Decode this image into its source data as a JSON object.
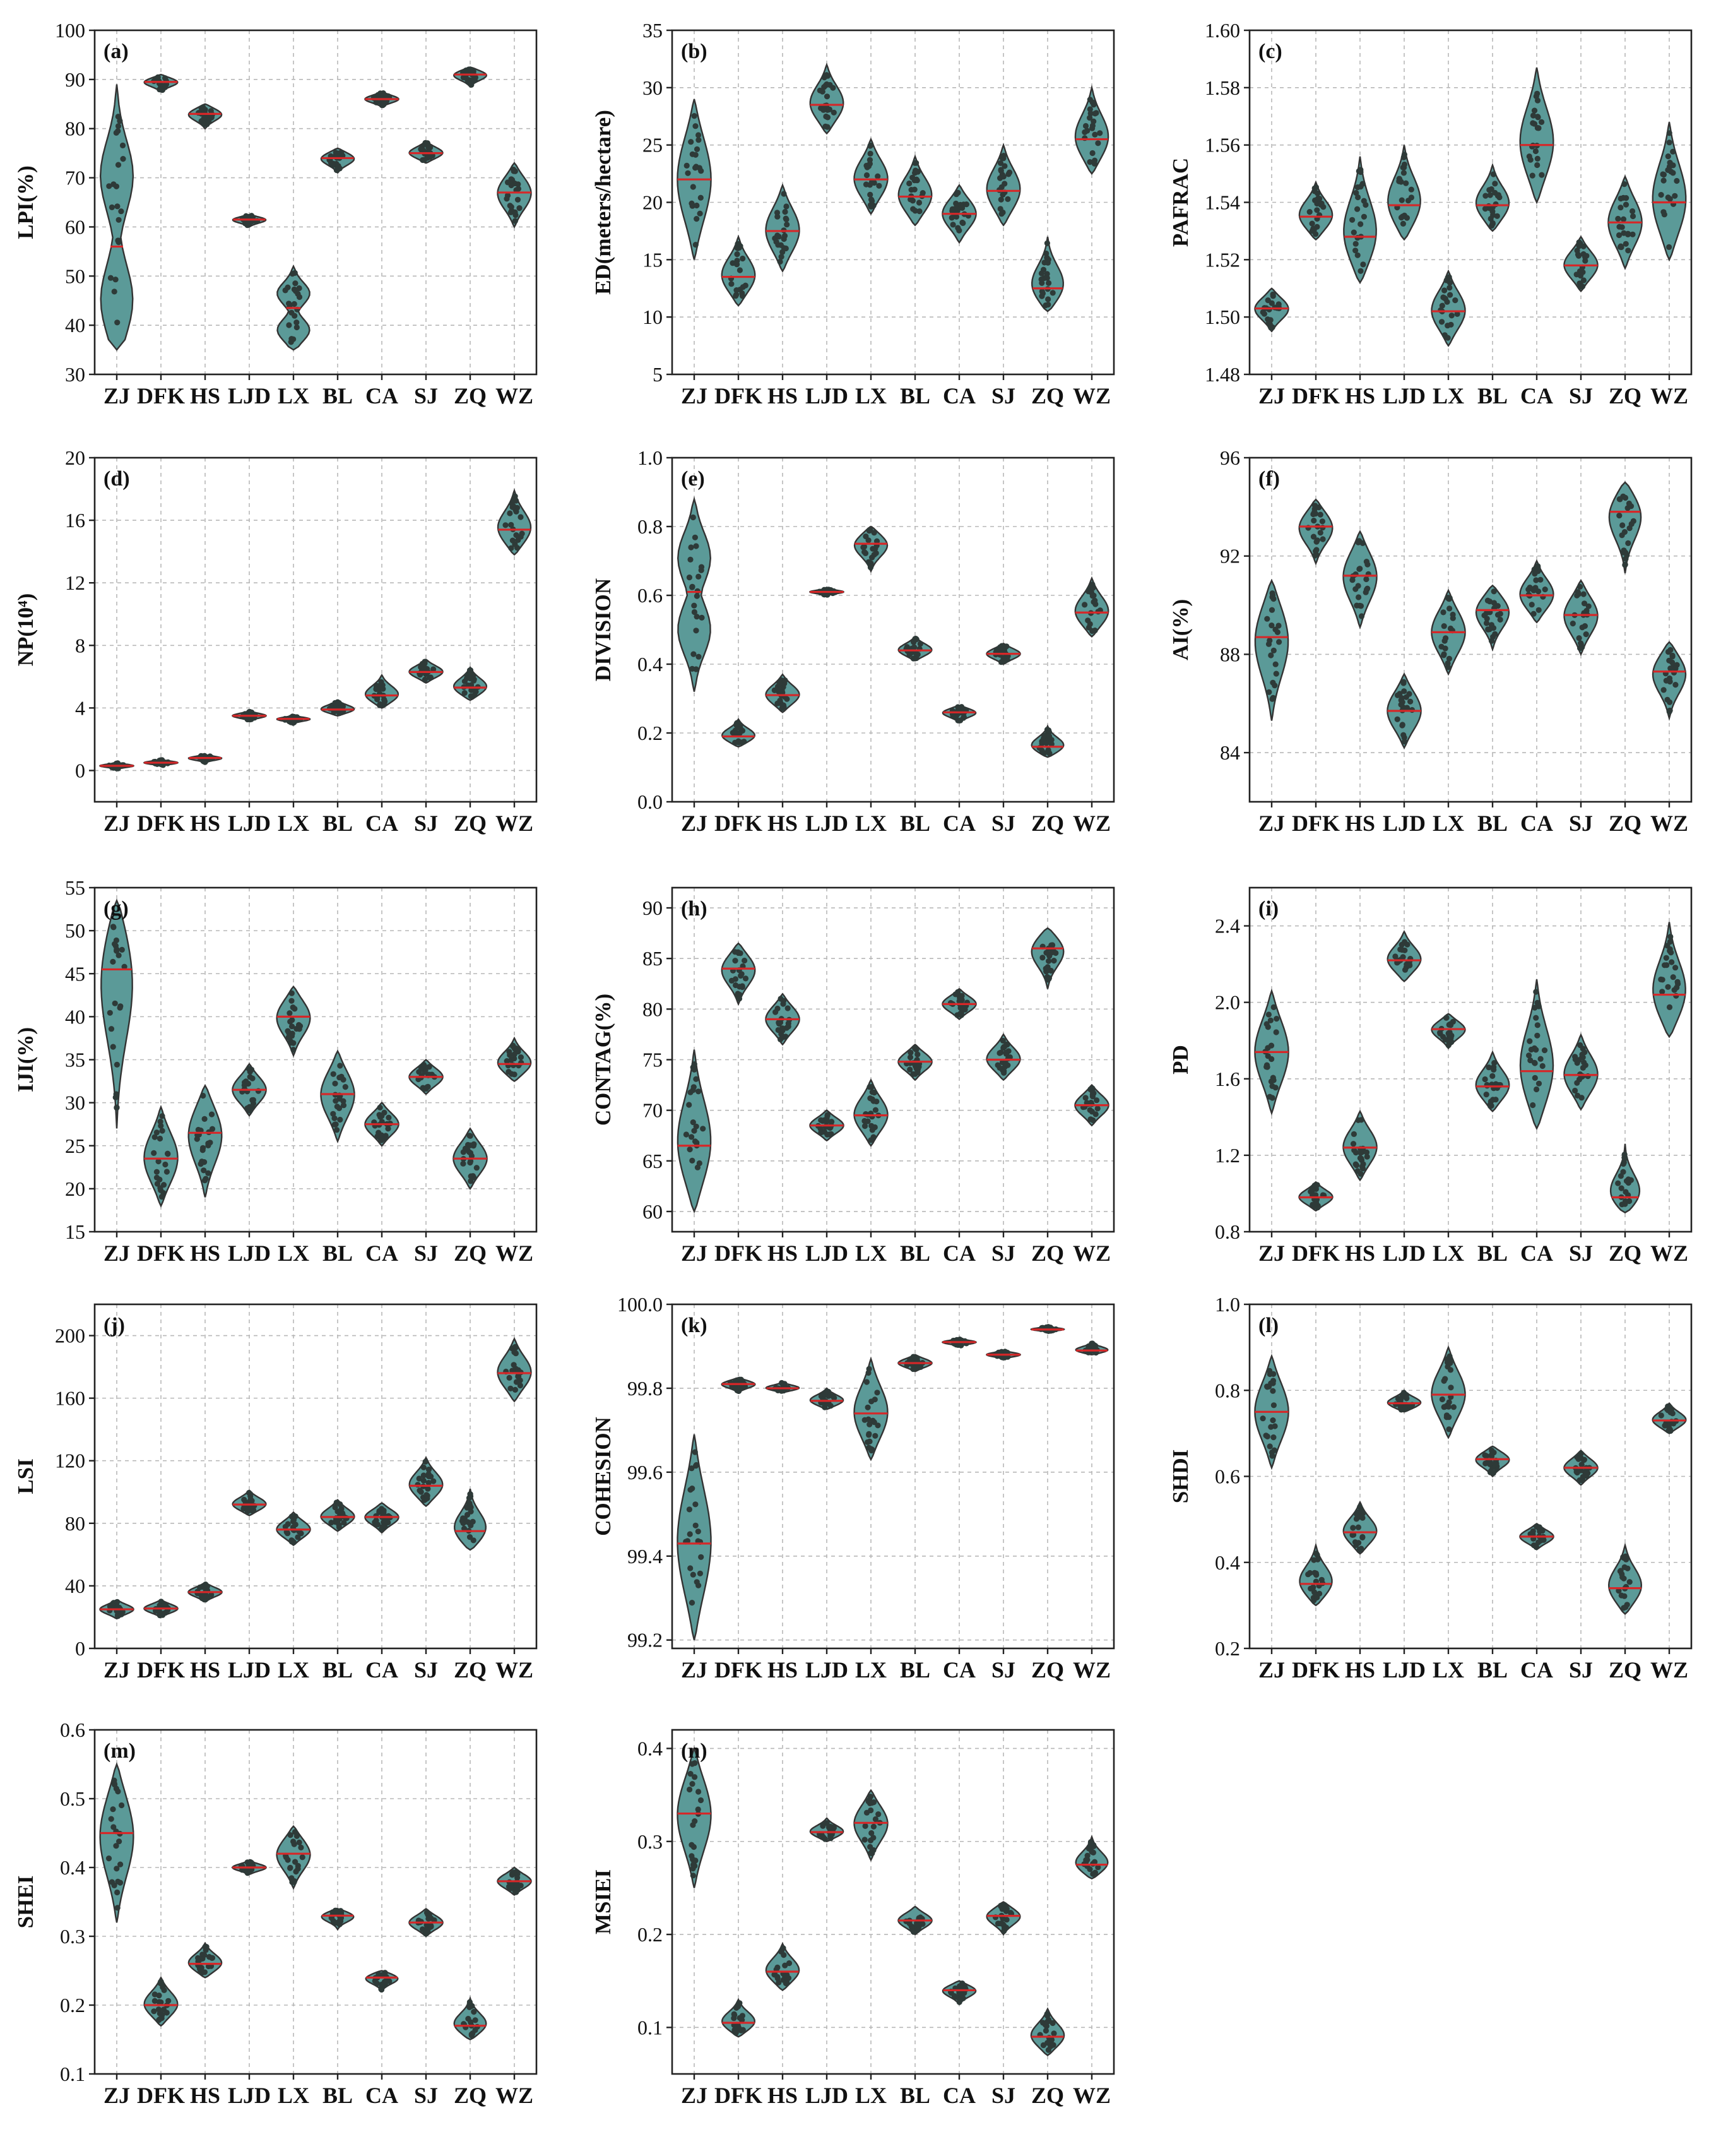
{
  "colors": {
    "violin": "#5b9a98",
    "dot": "#2e3a38",
    "median": "#d62728",
    "frame": "#222222",
    "grid": "#b8b8b8"
  },
  "chart_data": [
    {
      "id": "a",
      "label": "(a)",
      "type": "violin",
      "ylabel": "LPI(%)",
      "categories": [
        "ZJ",
        "DFK",
        "HS",
        "LJD",
        "LX",
        "BL",
        "CA",
        "SJ",
        "ZQ",
        "WZ"
      ],
      "ylim": [
        30,
        100
      ],
      "yticks": [
        30,
        40,
        50,
        60,
        70,
        80,
        90,
        100
      ],
      "yticklabels": [
        "30",
        "40",
        "50",
        "60",
        "70",
        "80",
        "90",
        "100"
      ],
      "medians": [
        56,
        89.5,
        83,
        61.5,
        43.5,
        74,
        86,
        75,
        91,
        67
      ],
      "ranges": [
        [
          35,
          89
        ],
        [
          87.5,
          91
        ],
        [
          80,
          85
        ],
        [
          60,
          62.5
        ],
        [
          35,
          52
        ],
        [
          71,
          76
        ],
        [
          84.5,
          87.5
        ],
        [
          73,
          77.5
        ],
        [
          88.5,
          92.5
        ],
        [
          60,
          73
        ]
      ],
      "bimodal": [
        [
          45,
          70.5
        ],
        null,
        null,
        null,
        [
          39,
          46.5
        ],
        null,
        null,
        null,
        null,
        null
      ]
    },
    {
      "id": "b",
      "label": "(b)",
      "type": "violin",
      "ylabel": "ED(meters/hectare)",
      "categories": [
        "ZJ",
        "DFK",
        "HS",
        "LJD",
        "LX",
        "BL",
        "CA",
        "SJ",
        "ZQ",
        "WZ"
      ],
      "ylim": [
        5,
        35
      ],
      "yticks": [
        5,
        10,
        15,
        20,
        25,
        30,
        35
      ],
      "yticklabels": [
        "5",
        "10",
        "15",
        "20",
        "25",
        "30",
        "35"
      ],
      "medians": [
        22,
        13.5,
        17.5,
        28.5,
        22,
        20.5,
        19,
        21,
        12.5,
        25.5
      ],
      "ranges": [
        [
          15,
          29
        ],
        [
          11,
          17
        ],
        [
          14,
          21.5
        ],
        [
          26,
          32
        ],
        [
          19,
          25.5
        ],
        [
          18,
          24
        ],
        [
          16.5,
          21.5
        ],
        [
          18,
          25
        ],
        [
          10.5,
          17
        ],
        [
          22.5,
          30
        ]
      ],
      "bimodal": null
    },
    {
      "id": "c",
      "label": "(c)",
      "type": "violin",
      "ylabel": "PAFRAC",
      "categories": [
        "ZJ",
        "DFK",
        "HS",
        "LJD",
        "LX",
        "BL",
        "CA",
        "SJ",
        "ZQ",
        "WZ"
      ],
      "ylim": [
        1.48,
        1.6
      ],
      "yticks": [
        1.48,
        1.5,
        1.52,
        1.54,
        1.56,
        1.58,
        1.6
      ],
      "yticklabels": [
        "1.48",
        "1.50",
        "1.52",
        "1.54",
        "1.56",
        "1.58",
        "1.60"
      ],
      "medians": [
        1.503,
        1.535,
        1.528,
        1.539,
        1.502,
        1.539,
        1.56,
        1.518,
        1.533,
        1.54
      ],
      "ranges": [
        [
          1.495,
          1.51
        ],
        [
          1.527,
          1.547
        ],
        [
          1.512,
          1.556
        ],
        [
          1.527,
          1.56
        ],
        [
          1.49,
          1.516
        ],
        [
          1.53,
          1.553
        ],
        [
          1.54,
          1.587
        ],
        [
          1.509,
          1.528
        ],
        [
          1.517,
          1.549
        ],
        [
          1.52,
          1.568
        ]
      ],
      "bimodal": null
    },
    {
      "id": "d",
      "label": "(d)",
      "type": "violin",
      "ylabel": "NP(10⁴)",
      "categories": [
        "ZJ",
        "DFK",
        "HS",
        "LJD",
        "LX",
        "BL",
        "CA",
        "SJ",
        "ZQ",
        "WZ"
      ],
      "ylim": [
        -2,
        20
      ],
      "yticks": [
        0,
        4,
        8,
        12,
        16,
        20
      ],
      "yticklabels": [
        "0",
        "4",
        "8",
        "12",
        "16",
        "20"
      ],
      "medians": [
        0.3,
        0.5,
        0.8,
        3.5,
        3.3,
        3.9,
        4.8,
        6.3,
        5.3,
        15.4
      ],
      "ranges": [
        [
          0.1,
          0.5
        ],
        [
          0.3,
          0.7
        ],
        [
          0.5,
          1.0
        ],
        [
          3.2,
          3.8
        ],
        [
          3.0,
          3.5
        ],
        [
          3.5,
          4.5
        ],
        [
          4.0,
          6.1
        ],
        [
          5.6,
          7.1
        ],
        [
          4.5,
          6.6
        ],
        [
          13.8,
          17.9
        ]
      ],
      "bimodal": null
    },
    {
      "id": "e",
      "label": "(e)",
      "type": "violin",
      "ylabel": "DIVISION",
      "categories": [
        "ZJ",
        "DFK",
        "HS",
        "LJD",
        "LX",
        "BL",
        "CA",
        "SJ",
        "ZQ",
        "WZ"
      ],
      "ylim": [
        0,
        1.0
      ],
      "yticks": [
        0,
        0.2,
        0.4,
        0.6,
        0.8,
        1.0
      ],
      "yticklabels": [
        "0.0",
        "0.2",
        "0.4",
        "0.6",
        "0.8",
        "1.0"
      ],
      "medians": [
        0.61,
        0.19,
        0.31,
        0.61,
        0.75,
        0.44,
        0.26,
        0.43,
        0.16,
        0.55
      ],
      "ranges": [
        [
          0.32,
          0.88
        ],
        [
          0.16,
          0.24
        ],
        [
          0.26,
          0.37
        ],
        [
          0.6,
          0.62
        ],
        [
          0.67,
          0.8
        ],
        [
          0.41,
          0.48
        ],
        [
          0.23,
          0.28
        ],
        [
          0.4,
          0.46
        ],
        [
          0.13,
          0.22
        ],
        [
          0.48,
          0.65
        ]
      ],
      "bimodal": [
        [
          0.5,
          0.71
        ],
        null,
        null,
        null,
        null,
        null,
        null,
        null,
        null,
        null
      ]
    },
    {
      "id": "f",
      "label": "(f)",
      "type": "violin",
      "ylabel": "AI(%)",
      "categories": [
        "ZJ",
        "DFK",
        "HS",
        "LJD",
        "LX",
        "BL",
        "CA",
        "SJ",
        "ZQ",
        "WZ"
      ],
      "ylim": [
        82,
        96
      ],
      "yticks": [
        84,
        88,
        92,
        96
      ],
      "yticklabels": [
        "84",
        "88",
        "92",
        "96"
      ],
      "medians": [
        88.7,
        93.2,
        91.2,
        85.7,
        88.9,
        89.8,
        90.4,
        89.6,
        93.8,
        87.3
      ],
      "ranges": [
        [
          85.3,
          91.0
        ],
        [
          91.7,
          94.3
        ],
        [
          89.1,
          93.0
        ],
        [
          84.2,
          87.2
        ],
        [
          87.2,
          90.6
        ],
        [
          88.2,
          90.8
        ],
        [
          89.3,
          91.8
        ],
        [
          88.0,
          91.0
        ],
        [
          91.3,
          95.0
        ],
        [
          85.4,
          88.5
        ]
      ],
      "bimodal": null
    },
    {
      "id": "g",
      "label": "(g)",
      "type": "violin",
      "ylabel": "IJI(%)",
      "categories": [
        "ZJ",
        "DFK",
        "HS",
        "LJD",
        "LX",
        "BL",
        "CA",
        "SJ",
        "ZQ",
        "WZ"
      ],
      "ylim": [
        15,
        55
      ],
      "yticks": [
        15,
        20,
        25,
        30,
        35,
        40,
        45,
        50,
        55
      ],
      "yticklabels": [
        "15",
        "20",
        "25",
        "30",
        "35",
        "40",
        "45",
        "50",
        "55"
      ],
      "medians": [
        45.5,
        23.5,
        26.5,
        31.5,
        40,
        31,
        27.5,
        33,
        23.5,
        34.5
      ],
      "ranges": [
        [
          27,
          53.5
        ],
        [
          18,
          29.5
        ],
        [
          19,
          32
        ],
        [
          28.5,
          34.5
        ],
        [
          35.5,
          43.5
        ],
        [
          25.5,
          36
        ],
        [
          25,
          30
        ],
        [
          31,
          35
        ],
        [
          20,
          27
        ],
        [
          32.5,
          37.5
        ]
      ],
      "bimodal": null
    },
    {
      "id": "h",
      "label": "(h)",
      "type": "violin",
      "ylabel": "CONTAG(%)",
      "categories": [
        "ZJ",
        "DFK",
        "HS",
        "LJD",
        "LX",
        "BL",
        "CA",
        "SJ",
        "ZQ",
        "WZ"
      ],
      "ylim": [
        58,
        92
      ],
      "yticks": [
        60,
        65,
        70,
        75,
        80,
        85,
        90
      ],
      "yticklabels": [
        "60",
        "65",
        "70",
        "75",
        "80",
        "85",
        "90"
      ],
      "medians": [
        66.5,
        84,
        79,
        68.5,
        69.5,
        74.8,
        80.5,
        75,
        86,
        70.5
      ],
      "ranges": [
        [
          60,
          76
        ],
        [
          80.5,
          86.5
        ],
        [
          76.5,
          81.5
        ],
        [
          67,
          70
        ],
        [
          66.5,
          73
        ],
        [
          73,
          76.5
        ],
        [
          79,
          82
        ],
        [
          73,
          77.5
        ],
        [
          82,
          88
        ],
        [
          68.5,
          72.5
        ]
      ],
      "bimodal": null
    },
    {
      "id": "i",
      "label": "(i)",
      "type": "violin",
      "ylabel": "PD",
      "categories": [
        "ZJ",
        "DFK",
        "HS",
        "LJD",
        "LX",
        "BL",
        "CA",
        "SJ",
        "ZQ",
        "WZ"
      ],
      "ylim": [
        0.8,
        2.6
      ],
      "yticks": [
        0.8,
        1.2,
        1.6,
        2.0,
        2.4
      ],
      "yticklabels": [
        "0.8",
        "1.2",
        "1.6",
        "2.0",
        "2.4"
      ],
      "medians": [
        1.74,
        0.98,
        1.24,
        2.22,
        1.86,
        1.56,
        1.64,
        1.62,
        0.98,
        2.04
      ],
      "ranges": [
        [
          1.42,
          2.06
        ],
        [
          0.91,
          1.06
        ],
        [
          1.07,
          1.43
        ],
        [
          2.11,
          2.37
        ],
        [
          1.76,
          1.94
        ],
        [
          1.43,
          1.74
        ],
        [
          1.34,
          2.12
        ],
        [
          1.44,
          1.83
        ],
        [
          0.9,
          1.26
        ],
        [
          1.82,
          2.42
        ]
      ],
      "bimodal": null
    },
    {
      "id": "j",
      "label": "(j)",
      "type": "violin",
      "ylabel": "LSI",
      "categories": [
        "ZJ",
        "DFK",
        "HS",
        "LJD",
        "LX",
        "BL",
        "CA",
        "SJ",
        "ZQ",
        "WZ"
      ],
      "ylim": [
        0,
        220
      ],
      "yticks": [
        0,
        40,
        80,
        120,
        160,
        200
      ],
      "yticklabels": [
        "0",
        "40",
        "80",
        "120",
        "160",
        "200"
      ],
      "medians": [
        25,
        25.5,
        36,
        92,
        76,
        84,
        84,
        104,
        75,
        176
      ],
      "ranges": [
        [
          19,
          31
        ],
        [
          20,
          31
        ],
        [
          30,
          42
        ],
        [
          85,
          101
        ],
        [
          66,
          87
        ],
        [
          75,
          95
        ],
        [
          74,
          93
        ],
        [
          91,
          122
        ],
        [
          63,
          102
        ],
        [
          158,
          198
        ]
      ],
      "bimodal": null
    },
    {
      "id": "k",
      "label": "(k)",
      "type": "violin",
      "ylabel": "COHESION",
      "categories": [
        "ZJ",
        "DFK",
        "HS",
        "LJD",
        "LX",
        "BL",
        "CA",
        "SJ",
        "ZQ",
        "WZ"
      ],
      "ylim": [
        99.18,
        100.0
      ],
      "yticks": [
        99.2,
        99.4,
        99.6,
        99.8,
        100.0
      ],
      "yticklabels": [
        "99.2",
        "99.4",
        "99.6",
        "99.8",
        "100.0"
      ],
      "medians": [
        99.43,
        99.81,
        99.8,
        99.77,
        99.74,
        99.86,
        99.91,
        99.88,
        99.94,
        99.89
      ],
      "ranges": [
        [
          99.2,
          99.69
        ],
        [
          99.79,
          99.825
        ],
        [
          99.79,
          99.815
        ],
        [
          99.75,
          99.8
        ],
        [
          99.63,
          99.87
        ],
        [
          99.84,
          99.88
        ],
        [
          99.9,
          99.918
        ],
        [
          99.87,
          99.89
        ],
        [
          99.935,
          99.948
        ],
        [
          99.88,
          99.91
        ]
      ],
      "bimodal": null
    },
    {
      "id": "l",
      "label": "(l)",
      "type": "violin",
      "ylabel": "SHDI",
      "categories": [
        "ZJ",
        "DFK",
        "HS",
        "LJD",
        "LX",
        "BL",
        "CA",
        "SJ",
        "ZQ",
        "WZ"
      ],
      "ylim": [
        0.2,
        1.0
      ],
      "yticks": [
        0.2,
        0.4,
        0.6,
        0.8,
        1.0
      ],
      "yticklabels": [
        "0.2",
        "0.4",
        "0.6",
        "0.8",
        "1.0"
      ],
      "medians": [
        0.75,
        0.35,
        0.47,
        0.77,
        0.79,
        0.64,
        0.46,
        0.62,
        0.34,
        0.73
      ],
      "ranges": [
        [
          0.62,
          0.88
        ],
        [
          0.3,
          0.44
        ],
        [
          0.42,
          0.54
        ],
        [
          0.75,
          0.8
        ],
        [
          0.69,
          0.9
        ],
        [
          0.6,
          0.67
        ],
        [
          0.43,
          0.49
        ],
        [
          0.58,
          0.66
        ],
        [
          0.28,
          0.44
        ],
        [
          0.7,
          0.77
        ]
      ],
      "bimodal": null
    },
    {
      "id": "m",
      "label": "(m)",
      "type": "violin",
      "ylabel": "SHEI",
      "categories": [
        "ZJ",
        "DFK",
        "HS",
        "LJD",
        "LX",
        "BL",
        "CA",
        "SJ",
        "ZQ",
        "WZ"
      ],
      "ylim": [
        0.1,
        0.6
      ],
      "yticks": [
        0.1,
        0.2,
        0.3,
        0.4,
        0.5,
        0.6
      ],
      "yticklabels": [
        "0.1",
        "0.2",
        "0.3",
        "0.4",
        "0.5",
        "0.6"
      ],
      "medians": [
        0.45,
        0.2,
        0.26,
        0.4,
        0.42,
        0.33,
        0.24,
        0.32,
        0.17,
        0.38
      ],
      "ranges": [
        [
          0.32,
          0.55
        ],
        [
          0.17,
          0.24
        ],
        [
          0.24,
          0.29
        ],
        [
          0.39,
          0.41
        ],
        [
          0.37,
          0.46
        ],
        [
          0.31,
          0.34
        ],
        [
          0.22,
          0.25
        ],
        [
          0.3,
          0.34
        ],
        [
          0.15,
          0.21
        ],
        [
          0.36,
          0.4
        ]
      ],
      "bimodal": null
    },
    {
      "id": "n",
      "label": "(n)",
      "type": "violin",
      "ylabel": "MSIEI",
      "categories": [
        "ZJ",
        "DFK",
        "HS",
        "LJD",
        "LX",
        "BL",
        "CA",
        "SJ",
        "ZQ",
        "WZ"
      ],
      "ylim": [
        0.05,
        0.42
      ],
      "yticks": [
        0.1,
        0.2,
        0.3,
        0.4
      ],
      "yticklabels": [
        "0.1",
        "0.2",
        "0.3",
        "0.4"
      ],
      "medians": [
        0.33,
        0.105,
        0.16,
        0.31,
        0.32,
        0.215,
        0.14,
        0.22,
        0.09,
        0.275
      ],
      "ranges": [
        [
          0.25,
          0.4
        ],
        [
          0.09,
          0.13
        ],
        [
          0.14,
          0.19
        ],
        [
          0.3,
          0.325
        ],
        [
          0.28,
          0.355
        ],
        [
          0.2,
          0.23
        ],
        [
          0.125,
          0.15
        ],
        [
          0.2,
          0.235
        ],
        [
          0.07,
          0.12
        ],
        [
          0.26,
          0.305
        ]
      ],
      "bimodal": null
    }
  ]
}
